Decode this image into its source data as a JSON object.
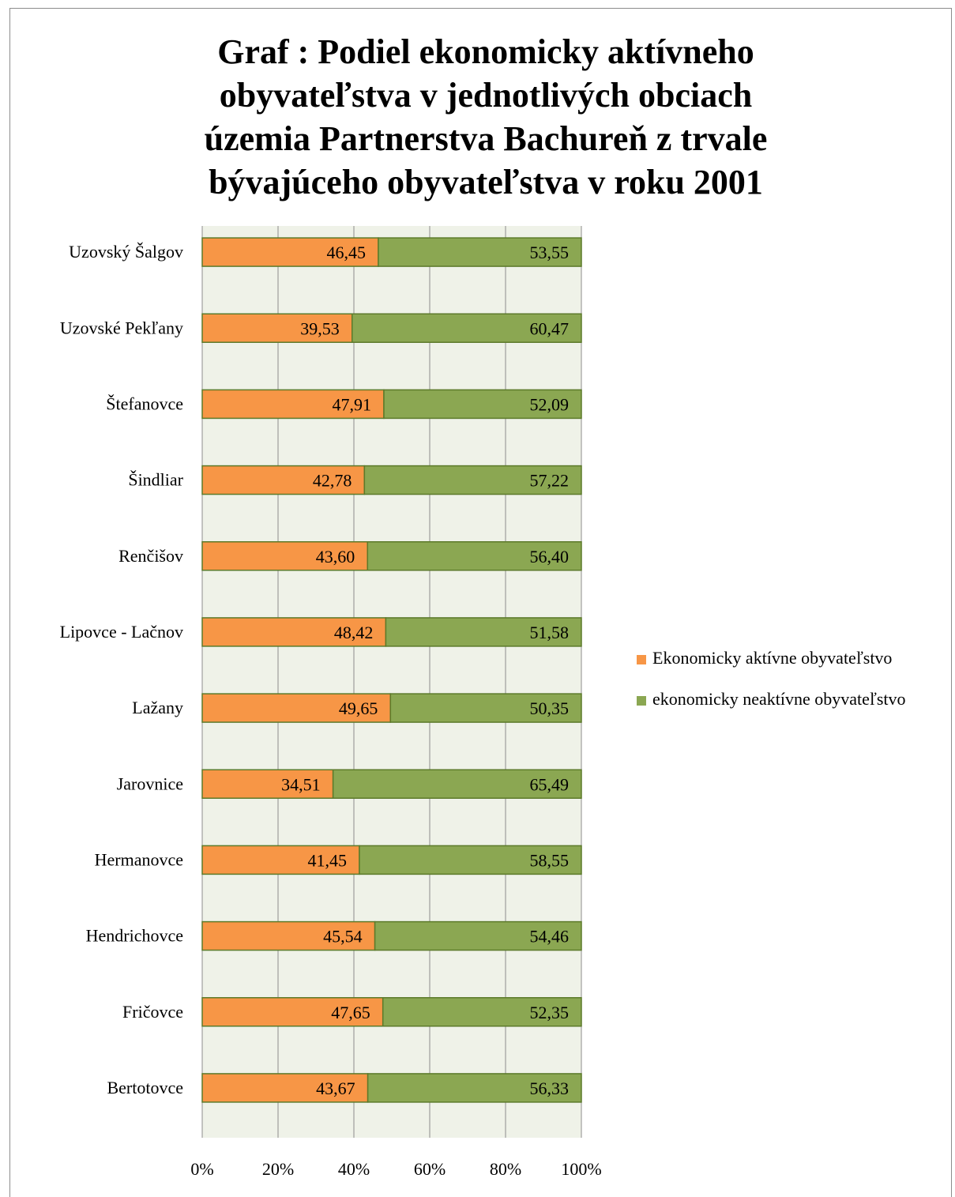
{
  "title_lines": [
    "Graf : Podiel ekonomicky aktívneho",
    "obyvateľstva v jednotlivých obciach",
    "územia Partnerstva Bachureň z trvale",
    "bývajúceho obyvateľstva v roku 2001"
  ],
  "chart_data": {
    "type": "bar",
    "orientation": "horizontal",
    "stacking": "100%",
    "title": "Graf : Podiel ekonomicky aktívneho obyvateľstva v jednotlivých obciach územia Partnerstva Bachureň z trvale bývajúceho obyvateľstva v roku 2001",
    "categories": [
      "Uzovský Šalgov",
      "Uzovské Pekľany",
      "Štefanovce",
      "Šindliar",
      "Renčišov",
      "Lipovce - Lačnov",
      "Lažany",
      "Jarovnice",
      "Hermanovce",
      "Hendrichovce",
      "Fričovce",
      "Bertotovce"
    ],
    "series": [
      {
        "name": "Ekonomicky aktívne obyvateľstvo",
        "color": "#f79646",
        "values": [
          46.45,
          39.53,
          47.91,
          42.78,
          43.6,
          48.42,
          49.65,
          34.51,
          41.45,
          45.54,
          47.65,
          43.67
        ],
        "labels": [
          "46,45",
          "39,53",
          "47,91",
          "42,78",
          "43,60",
          "48,42",
          "49,65",
          "34,51",
          "41,45",
          "45,54",
          "47,65",
          "43,67"
        ]
      },
      {
        "name": "ekonomicky neaktívne obyvateľstvo",
        "color": "#8ba752",
        "values": [
          53.55,
          60.47,
          52.09,
          57.22,
          56.4,
          51.58,
          50.35,
          65.49,
          58.55,
          54.46,
          52.35,
          56.33
        ],
        "labels": [
          "53,55",
          "60,47",
          "52,09",
          "57,22",
          "56,40",
          "51,58",
          "50,35",
          "65,49",
          "58,55",
          "54,46",
          "52,35",
          "56,33"
        ]
      }
    ],
    "x_ticks": [
      "0%",
      "20%",
      "40%",
      "60%",
      "80%",
      "100%"
    ],
    "xlim": [
      0,
      100
    ],
    "grid": true,
    "legend_position": "right",
    "plot_background": "#eff2e8",
    "bar_border_color": "#5c7a2a"
  }
}
